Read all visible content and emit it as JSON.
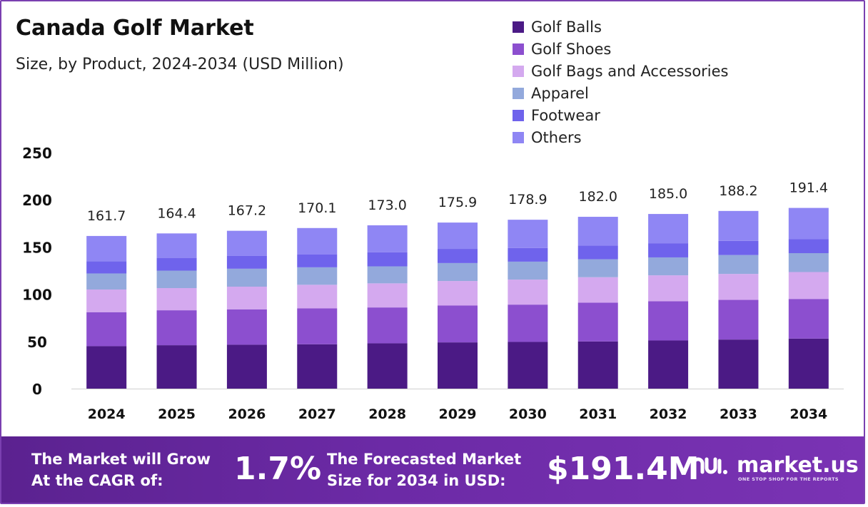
{
  "title": "Canada Golf Market",
  "subtitle": "Size, by Product, 2024-2034 (USD Million)",
  "colors": {
    "frame": "#7a3fb0",
    "golf_balls": "#4b1a85",
    "golf_shoes": "#8c4fcf",
    "golf_bags": "#d4a9ef",
    "apparel": "#93a9dc",
    "footwear": "#6f63ec",
    "others": "#8f86f4"
  },
  "chart_data": {
    "type": "bar",
    "stacked": true,
    "categories": [
      "2024",
      "2025",
      "2026",
      "2027",
      "2028",
      "2029",
      "2030",
      "2031",
      "2032",
      "2033",
      "2034"
    ],
    "totals": [
      "161.7",
      "164.4",
      "167.2",
      "170.1",
      "173.0",
      "175.9",
      "178.9",
      "182.0",
      "185.0",
      "188.2",
      "191.4"
    ],
    "series": [
      {
        "name": "Golf Balls",
        "values": [
          45,
          46,
          46.5,
          47,
          48,
          49,
          49.5,
          50,
          51,
          52,
          53
        ]
      },
      {
        "name": "Golf Shoes",
        "values": [
          36,
          37,
          37.5,
          38,
          38,
          39,
          39.5,
          41,
          41.5,
          42,
          42
        ]
      },
      {
        "name": "Golf Bags and Accessories",
        "values": [
          24,
          23.5,
          24,
          25,
          25.5,
          26,
          26.5,
          27,
          27.5,
          27.5,
          28.5
        ]
      },
      {
        "name": "Apparel",
        "values": [
          17,
          18.5,
          19,
          18.5,
          18,
          19,
          19,
          19,
          19,
          20,
          20
        ]
      },
      {
        "name": "Footwear",
        "values": [
          13,
          13.5,
          13.5,
          13.5,
          15,
          15,
          14.5,
          14.5,
          15,
          15,
          15
        ]
      },
      {
        "name": "Others",
        "values": [
          26.7,
          25.9,
          26.7,
          28.1,
          28.5,
          27.9,
          29.9,
          30.5,
          31,
          31.7,
          32.9
        ]
      }
    ],
    "ylim": [
      0,
      250
    ],
    "yticks": [
      "0",
      "50",
      "100",
      "150",
      "200",
      "250"
    ],
    "grid": false,
    "legend": "top-right"
  },
  "banner": {
    "cagr_label_line1": "The Market will Grow",
    "cagr_label_line2": "At the CAGR of:",
    "cagr_value": "1.7%",
    "forecast_label_line1": "The Forecasted Market",
    "forecast_label_line2": "Size for 2034 in USD:",
    "forecast_value": "$191.4M",
    "brand_name": "market.us",
    "brand_tagline": "ONE STOP SHOP FOR THE REPORTS",
    "brand_icon": "market-us-logo-icon"
  }
}
